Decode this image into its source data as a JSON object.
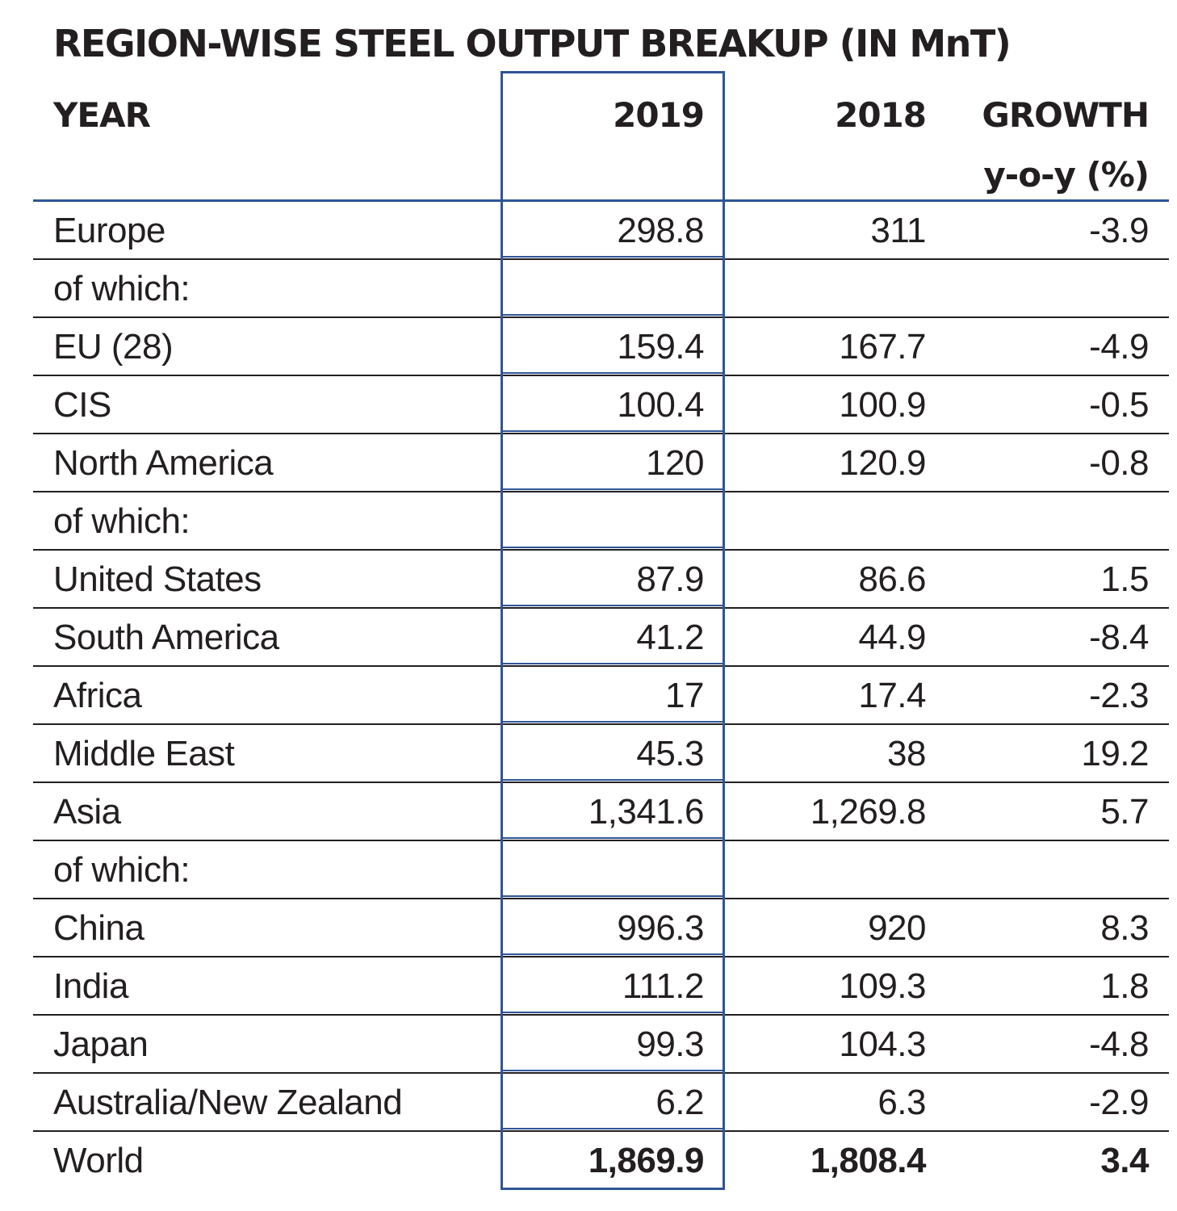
{
  "title": "REGION-WISE STEEL OUTPUT BREAKUP (IN MnT)",
  "header": {
    "year": "YEAR",
    "col_2019": "2019",
    "col_2018": "2018",
    "growth": "GROWTH",
    "growth_unit": "y-o-y (%)"
  },
  "rows": [
    {
      "region": "Europe",
      "v2019": "298.8",
      "v2018": "311",
      "growth": "-3.9"
    },
    {
      "region": "of which:",
      "v2019": "",
      "v2018": "",
      "growth": ""
    },
    {
      "region": "EU (28)",
      "v2019": "159.4",
      "v2018": "167.7",
      "growth": "-4.9"
    },
    {
      "region": "CIS",
      "v2019": "100.4",
      "v2018": "100.9",
      "growth": "-0.5"
    },
    {
      "region": "North America",
      "v2019": "120",
      "v2018": "120.9",
      "growth": "-0.8"
    },
    {
      "region": "of which:",
      "v2019": "",
      "v2018": "",
      "growth": ""
    },
    {
      "region": "United States",
      "v2019": "87.9",
      "v2018": "86.6",
      "growth": "1.5"
    },
    {
      "region": "South America",
      "v2019": "41.2",
      "v2018": "44.9",
      "growth": "-8.4"
    },
    {
      "region": "Africa",
      "v2019": "17",
      "v2018": "17.4",
      "growth": "-2.3"
    },
    {
      "region": "Middle East",
      "v2019": "45.3",
      "v2018": "38",
      "growth": "19.2"
    },
    {
      "region": "Asia",
      "v2019": "1,341.6",
      "v2018": "1,269.8",
      "growth": "5.7"
    },
    {
      "region": "of which:",
      "v2019": "",
      "v2018": "",
      "growth": ""
    },
    {
      "region": "China",
      "v2019": "996.3",
      "v2018": "920",
      "growth": "8.3"
    },
    {
      "region": "India",
      "v2019": "111.2",
      "v2018": "109.3",
      "growth": "1.8"
    },
    {
      "region": "Japan",
      "v2019": "99.3",
      "v2018": "104.3",
      "growth": "-4.8"
    },
    {
      "region": "Australia/New Zealand",
      "v2019": "6.2",
      "v2018": "6.3",
      "growth": "-2.9"
    },
    {
      "region": "World",
      "v2019": "1,869.9",
      "v2018": "1,808.4",
      "growth": "3.4"
    }
  ],
  "colors": {
    "highlight_border": "#2f5597",
    "text": "#231f20"
  }
}
